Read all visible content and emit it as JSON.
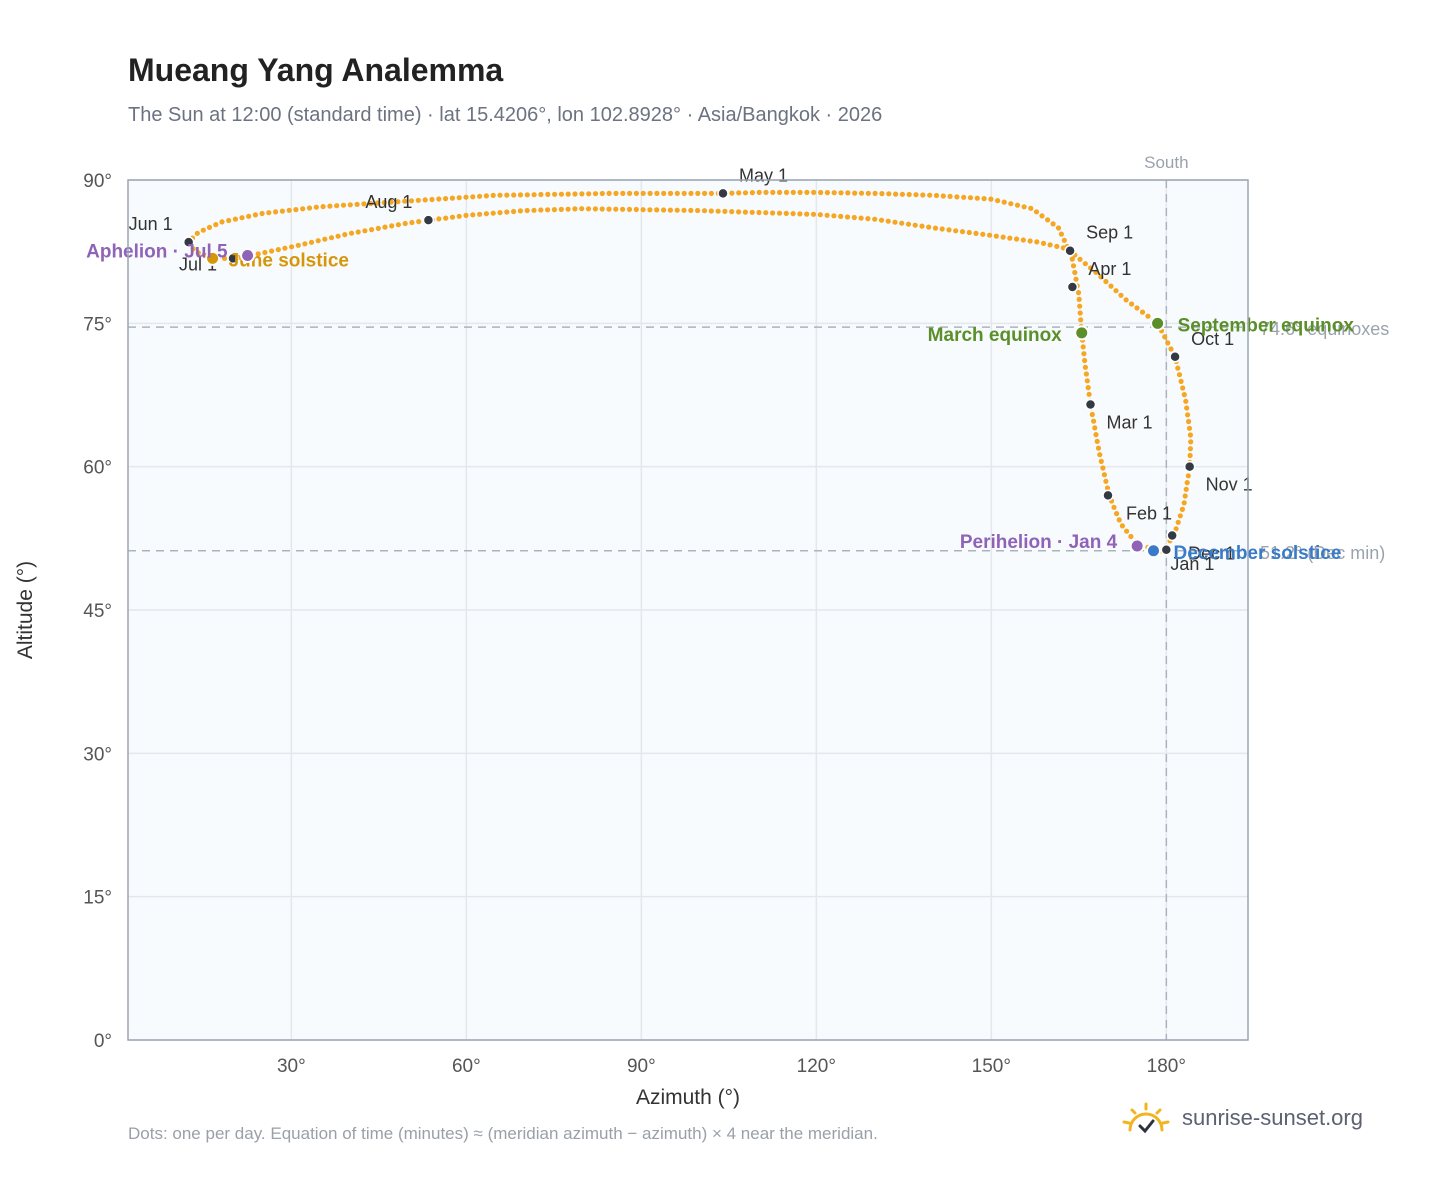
{
  "header": {
    "title": "Mueang Yang Analemma",
    "subtitle": "The Sun at 12:00 (standard time) · lat 15.4206°, lon 102.8928° · Asia/Bangkok · 2026"
  },
  "footer": {
    "note": "Dots: one per day. Equation of time (minutes) ≈ (meridian azimuth − azimuth) × 4 near the meridian.",
    "brand": "sunrise-sunset.org"
  },
  "chart_data": {
    "type": "scatter",
    "xlabel": "Azimuth (°)",
    "ylabel": "Altitude (°)",
    "xlim": [
      2,
      194
    ],
    "ylim": [
      0,
      90
    ],
    "xticks": [
      30,
      60,
      90,
      120,
      150,
      180
    ],
    "yticks": [
      0,
      15,
      30,
      45,
      60,
      75,
      90
    ],
    "tick_suffix": "°",
    "grid": true,
    "colors": {
      "analemma": "#f5a623",
      "month_marker": "#333a45",
      "equinox": "#5a8f29",
      "solstice_june": "#d6960c",
      "solstice_december": "#3a7bc8",
      "perihelion_aphelion": "#8e63b8",
      "reference_line": "#aab4be",
      "plot_background": "#f8fbfd"
    },
    "meridian": {
      "x": 180,
      "label": "South"
    },
    "reference_lines": [
      {
        "y": 74.6,
        "label": "74.6° equinoxes"
      },
      {
        "y": 51.2,
        "label": "51.2° (Dec min)"
      }
    ],
    "path_points": [
      [
        179.1,
        51.2
      ],
      [
        176.5,
        51.6
      ],
      [
        174.3,
        52.4
      ],
      [
        172.2,
        54.0
      ],
      [
        170.2,
        57.0
      ],
      [
        168.5,
        61.5
      ],
      [
        167.0,
        66.5
      ],
      [
        166.0,
        71.0
      ],
      [
        165.5,
        74.0
      ],
      [
        165.0,
        78.0
      ],
      [
        163.8,
        82.0
      ],
      [
        161.5,
        85.0
      ],
      [
        157.0,
        87.0
      ],
      [
        150.0,
        88.0
      ],
      [
        140.0,
        88.4
      ],
      [
        130.0,
        88.6
      ],
      [
        120.0,
        88.7
      ],
      [
        110.0,
        88.7
      ],
      [
        104.0,
        88.6
      ],
      [
        95.0,
        88.6
      ],
      [
        85.0,
        88.6
      ],
      [
        75.0,
        88.5
      ],
      [
        65.0,
        88.4
      ],
      [
        55.0,
        88.0
      ],
      [
        45.0,
        87.6
      ],
      [
        35.0,
        87.2
      ],
      [
        25.0,
        86.5
      ],
      [
        18.0,
        85.6
      ],
      [
        14.0,
        84.5
      ],
      [
        12.4,
        83.5
      ],
      [
        13.5,
        82.5
      ],
      [
        16.5,
        81.8
      ],
      [
        20.0,
        81.8
      ],
      [
        23.0,
        82.1
      ],
      [
        30.0,
        83.0
      ],
      [
        40.0,
        84.4
      ],
      [
        50.0,
        85.5
      ],
      [
        60.0,
        86.3
      ],
      [
        70.0,
        86.8
      ],
      [
        80.0,
        87.0
      ],
      [
        90.0,
        86.9
      ],
      [
        100.0,
        86.8
      ],
      [
        110.0,
        86.6
      ],
      [
        120.0,
        86.4
      ],
      [
        130.0,
        85.9
      ],
      [
        140.0,
        85.0
      ],
      [
        150.0,
        84.2
      ],
      [
        158.0,
        83.5
      ],
      [
        163.0,
        82.8
      ],
      [
        168.0,
        80.3
      ],
      [
        173.0,
        77.5
      ],
      [
        178.5,
        75.0
      ],
      [
        181.5,
        71.5
      ],
      [
        183.3,
        67.0
      ],
      [
        184.2,
        63.0
      ],
      [
        184.0,
        60.0
      ],
      [
        183.0,
        56.0
      ],
      [
        181.3,
        52.8
      ],
      [
        179.5,
        51.3
      ],
      [
        179.1,
        51.2
      ]
    ],
    "month_markers": [
      {
        "label": "Jan 1",
        "x": 180.0,
        "y": 51.3
      },
      {
        "label": "Feb 1",
        "x": 170.0,
        "y": 57.0
      },
      {
        "label": "Mar 1",
        "x": 167.0,
        "y": 66.5
      },
      {
        "label": "Apr 1",
        "x": 163.9,
        "y": 78.8
      },
      {
        "label": "May 1",
        "x": 104.0,
        "y": 88.6
      },
      {
        "label": "Jun 1",
        "x": 12.4,
        "y": 83.5
      },
      {
        "label": "Jul 1",
        "x": 20.0,
        "y": 81.8
      },
      {
        "label": "Aug 1",
        "x": 53.5,
        "y": 85.8
      },
      {
        "label": "Sep 1",
        "x": 163.5,
        "y": 82.6
      },
      {
        "label": "Oct 1",
        "x": 181.5,
        "y": 71.5
      },
      {
        "label": "Nov 1",
        "x": 184.0,
        "y": 60.0
      },
      {
        "label": "Dec 1",
        "x": 181.0,
        "y": 52.8
      }
    ],
    "events": [
      {
        "label": "March equinox",
        "x": 165.5,
        "y": 74.0,
        "kind": "equinox"
      },
      {
        "label": "September equinox",
        "x": 178.5,
        "y": 75.0,
        "kind": "equinox"
      },
      {
        "label": "June solstice",
        "x": 16.5,
        "y": 81.8,
        "kind": "solstice_june"
      },
      {
        "label": "December solstice",
        "x": 177.8,
        "y": 51.2,
        "kind": "solstice_december"
      },
      {
        "label": "Perihelion · Jan 4",
        "x": 175.0,
        "y": 51.7,
        "kind": "perihelion_aphelion"
      },
      {
        "label": "Aphelion · Jul 5",
        "x": 22.5,
        "y": 82.1,
        "kind": "perihelion_aphelion"
      }
    ]
  }
}
